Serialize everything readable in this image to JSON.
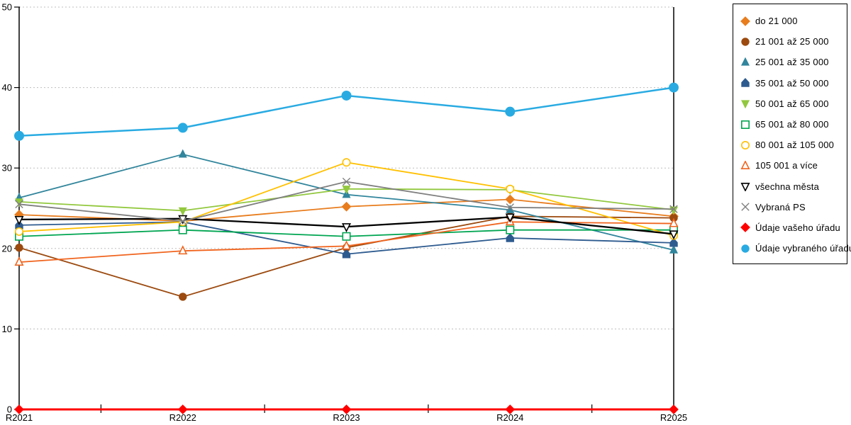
{
  "chart_data": {
    "type": "line",
    "title": "",
    "xlabel": "",
    "ylabel": "",
    "x": [
      "R2021",
      "R2022",
      "R2023",
      "R2024",
      "R2025"
    ],
    "ylim": [
      0,
      50
    ],
    "y_ticks": [
      "0",
      "10",
      "20",
      "30",
      "40",
      "50"
    ],
    "grid": "horizontal-dashed",
    "grid_color": "#BFBFBF",
    "axis_color": "#000000",
    "legend_position": "right-outside",
    "series": [
      {
        "name": "do 21 000",
        "marker": "diamond",
        "style": "filled",
        "color": "#E87D1E",
        "line_width": 1.8,
        "values": [
          24.2,
          23.4,
          25.2,
          26.1,
          24.0
        ]
      },
      {
        "name": "21 001 až 25 000",
        "marker": "circle",
        "style": "filled",
        "color": "#9C4A0F",
        "line_width": 1.8,
        "values": [
          20.1,
          14.0,
          20.1,
          24.0,
          23.8
        ]
      },
      {
        "name": "25 001 až 35 000",
        "marker": "triangle-up",
        "style": "filled",
        "color": "#31859C",
        "line_width": 1.8,
        "values": [
          26.3,
          31.7,
          26.7,
          24.8,
          19.8
        ]
      },
      {
        "name": "35 001 až 50 000",
        "marker": "pentagon",
        "style": "filled",
        "color": "#2E5B8F",
        "line_width": 1.8,
        "values": [
          22.9,
          23.3,
          19.3,
          21.3,
          20.7
        ]
      },
      {
        "name": "50 001 až 65 000",
        "marker": "triangle-down",
        "style": "filled",
        "color": "#92C83E",
        "line_width": 1.8,
        "values": [
          25.8,
          24.7,
          27.4,
          27.3,
          24.8
        ]
      },
      {
        "name": "65 001 až 80 000",
        "marker": "square",
        "style": "open",
        "color": "#00A551",
        "line_width": 1.8,
        "values": [
          21.5,
          22.3,
          21.5,
          22.3,
          22.3
        ]
      },
      {
        "name": "80 001 až 105 000",
        "marker": "circle",
        "style": "open",
        "color": "#FFC000",
        "line_width": 1.8,
        "values": [
          22.1,
          23.3,
          30.7,
          27.4,
          21.6
        ]
      },
      {
        "name": "105 001 a více",
        "marker": "triangle-up",
        "style": "open",
        "color": "#F0641E",
        "line_width": 1.8,
        "values": [
          18.3,
          19.7,
          20.3,
          23.3,
          23.1
        ]
      },
      {
        "name": "všechna města",
        "marker": "triangle-down",
        "style": "open",
        "color": "#000000",
        "line_width": 2.3,
        "values": [
          23.6,
          23.7,
          22.7,
          23.9,
          21.8
        ]
      },
      {
        "name": "Vybraná PS",
        "marker": "x",
        "style": "open",
        "color": "#7F7F7F",
        "line_width": 1.8,
        "values": [
          25.5,
          23.4,
          28.3,
          25.1,
          24.9
        ]
      },
      {
        "name": "Údaje vašeho úřadu",
        "marker": "diamond",
        "style": "filled",
        "color": "#FF0000",
        "line_width": 3.0,
        "values": [
          0,
          0,
          0,
          0,
          0
        ]
      },
      {
        "name": "Údaje vybraného úřadu",
        "marker": "circle",
        "style": "filled",
        "color": "#29ABE2",
        "line_width": 2.5,
        "values": [
          34,
          35,
          39,
          37,
          40
        ]
      }
    ]
  }
}
